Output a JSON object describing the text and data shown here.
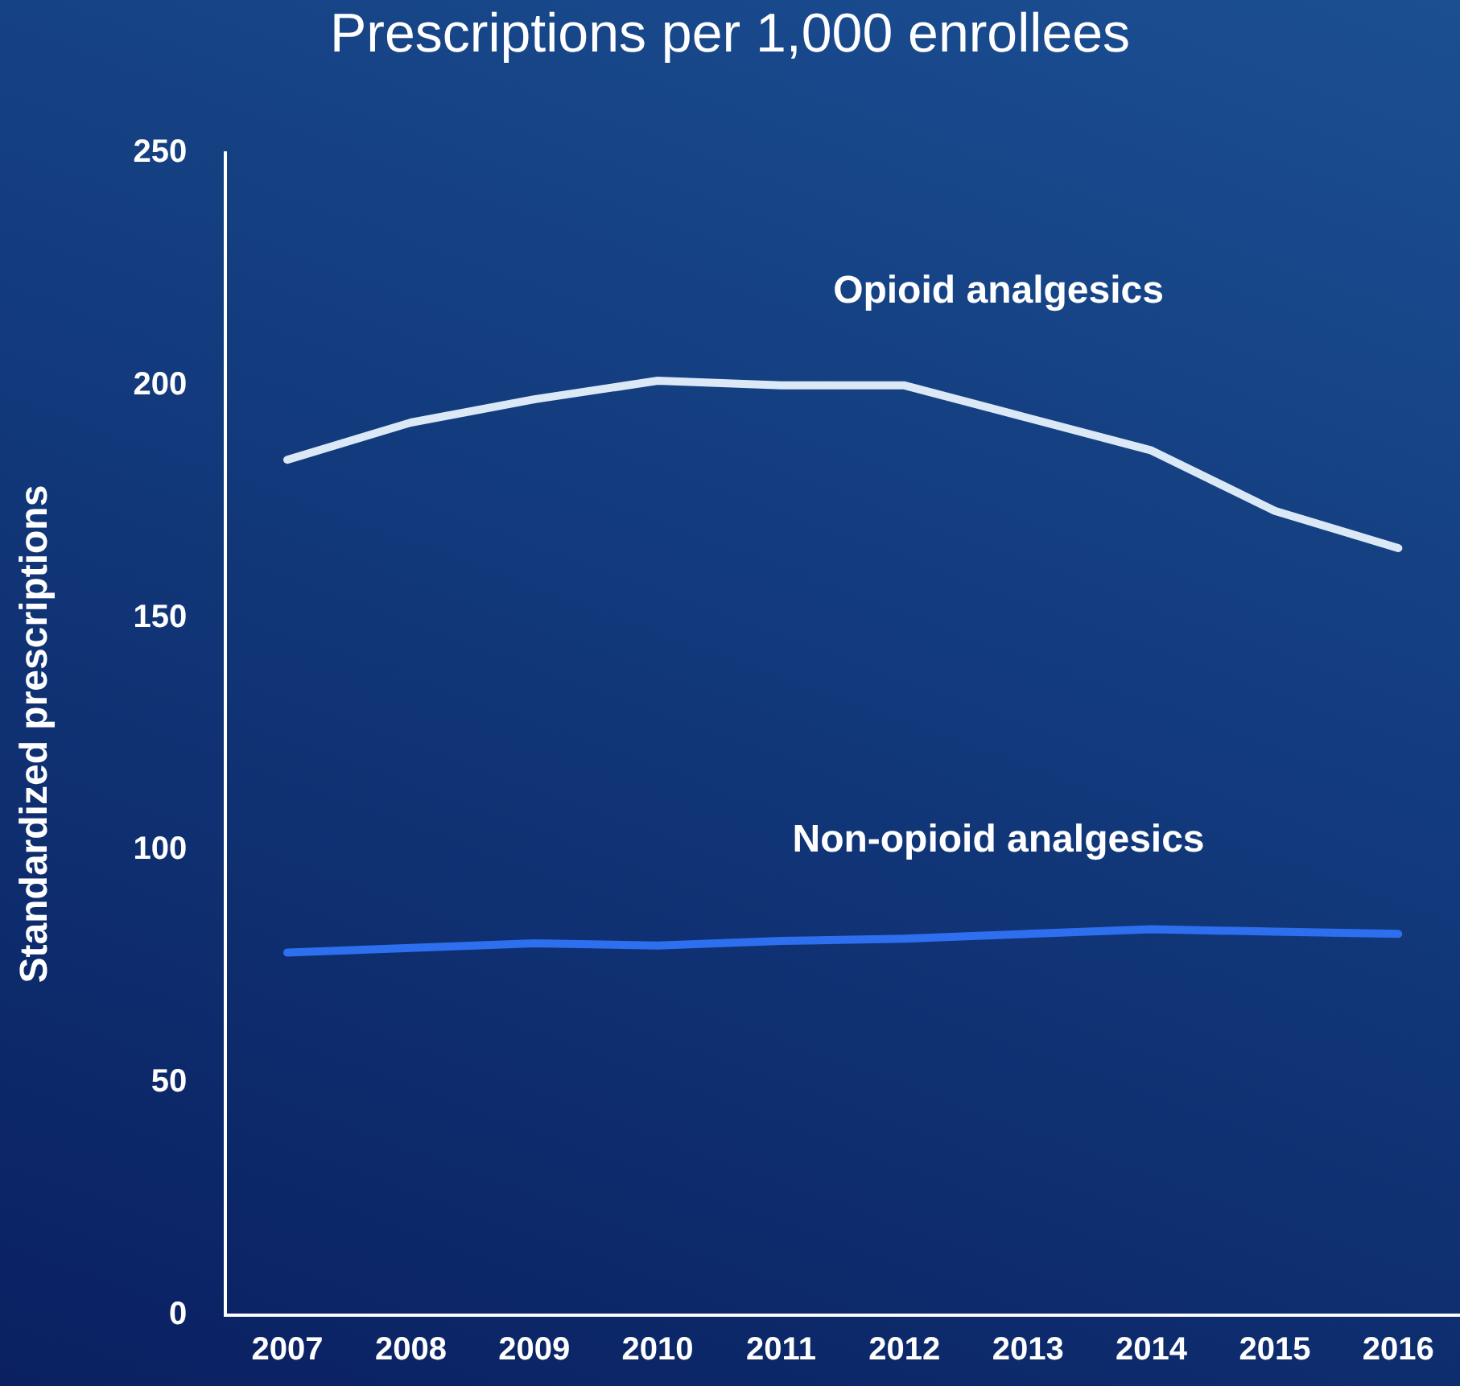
{
  "chart_data": {
    "type": "line",
    "title": "Prescriptions per 1,000 enrollees",
    "ylabel": "Standardized prescriptions",
    "categories": [
      "2007",
      "2008",
      "2009",
      "2010",
      "2011",
      "2012",
      "2013",
      "2014",
      "2015",
      "2016"
    ],
    "series": [
      {
        "name": "Opioid analgesics",
        "color": "#dbe9f7",
        "values": [
          184,
          192,
          197,
          201,
          200,
          200,
          193,
          186,
          173,
          165
        ]
      },
      {
        "name": "Non-opioid analgesics",
        "color": "#2e6ff0",
        "values": [
          78,
          79,
          80,
          79.5,
          80.5,
          81,
          82,
          83,
          82.5,
          82
        ]
      }
    ],
    "ylim": [
      0,
      250
    ],
    "yticks": [
      0,
      50,
      100,
      150,
      200,
      250
    ],
    "grid": false,
    "legend": false,
    "marker": "none",
    "line_style": "solid"
  }
}
